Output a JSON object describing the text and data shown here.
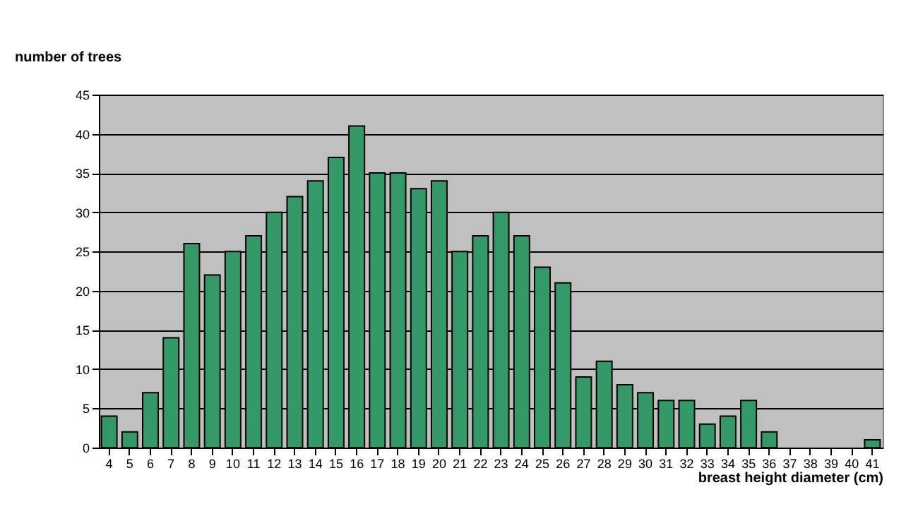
{
  "chart_data": {
    "type": "bar",
    "xlabel": "breast height diameter (cm)",
    "ylabel": "number of trees",
    "categories": [
      "4",
      "5",
      "6",
      "7",
      "8",
      "9",
      "10",
      "11",
      "12",
      "13",
      "14",
      "15",
      "16",
      "17",
      "18",
      "19",
      "20",
      "21",
      "22",
      "23",
      "24",
      "25",
      "26",
      "27",
      "28",
      "29",
      "30",
      "31",
      "32",
      "33",
      "34",
      "35",
      "36",
      "37",
      "38",
      "39",
      "40",
      "41"
    ],
    "values": [
      4,
      2,
      7,
      14,
      26,
      22,
      25,
      27,
      30,
      32,
      34,
      37,
      41,
      35,
      35,
      33,
      34,
      25,
      27,
      30,
      27,
      23,
      21,
      9,
      11,
      8,
      7,
      6,
      6,
      3,
      4,
      6,
      2,
      0,
      0,
      0,
      0,
      1
    ],
    "color": "#339966",
    "ylim": [
      0,
      45
    ],
    "yticks": [
      0,
      5,
      10,
      15,
      20,
      25,
      30,
      35,
      40,
      45
    ],
    "grid": "y"
  }
}
